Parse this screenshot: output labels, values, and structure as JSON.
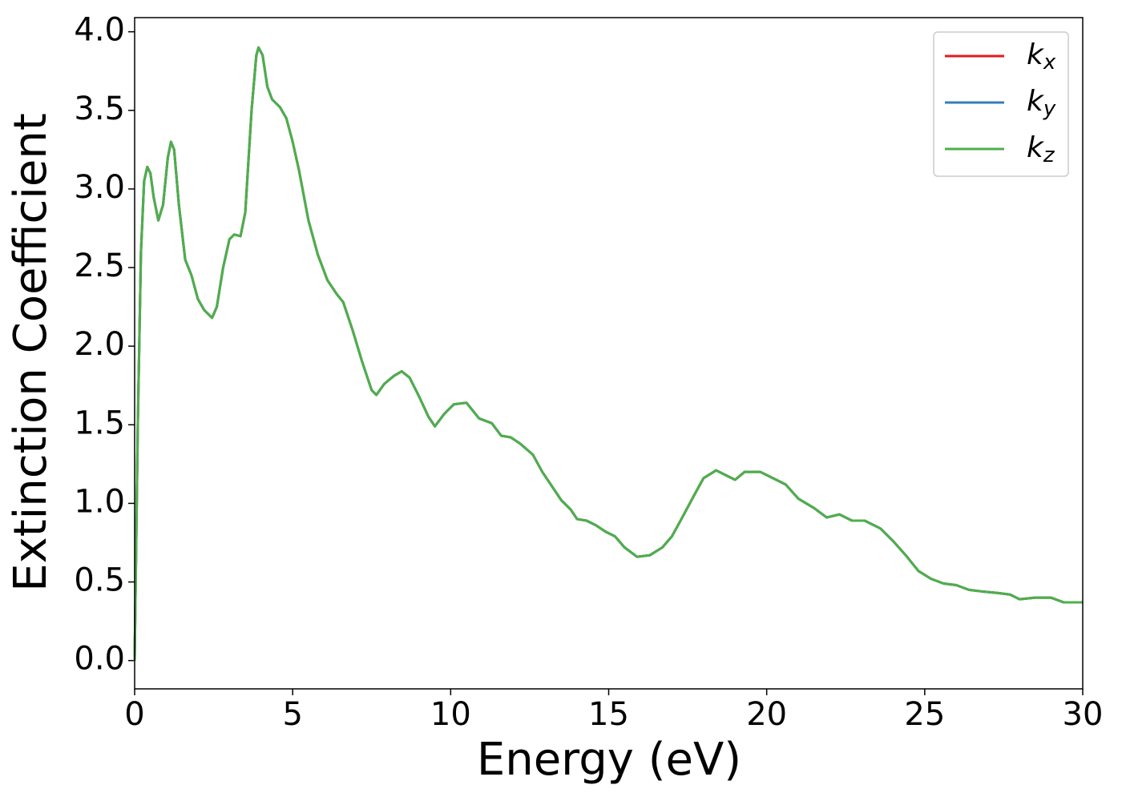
{
  "chart_data": {
    "type": "line",
    "xlabel": "Energy (eV)",
    "ylabel": "Extinction Coefficient",
    "x": [
      0,
      0.1,
      0.2,
      0.3,
      0.4,
      0.5,
      0.6,
      0.75,
      0.9,
      1.05,
      1.15,
      1.25,
      1.4,
      1.6,
      1.8,
      2.0,
      2.2,
      2.45,
      2.6,
      2.8,
      3.0,
      3.15,
      3.35,
      3.5,
      3.7,
      3.85,
      3.92,
      4.05,
      4.2,
      4.35,
      4.6,
      4.8,
      5.0,
      5.2,
      5.5,
      5.8,
      6.1,
      6.4,
      6.6,
      6.9,
      7.2,
      7.5,
      7.65,
      7.9,
      8.2,
      8.45,
      8.7,
      9.0,
      9.3,
      9.5,
      9.8,
      10.1,
      10.5,
      10.9,
      11.3,
      11.6,
      11.9,
      12.2,
      12.6,
      12.9,
      13.2,
      13.5,
      13.8,
      14.0,
      14.3,
      14.6,
      14.9,
      15.2,
      15.5,
      15.9,
      16.3,
      16.7,
      17.0,
      17.3,
      17.7,
      18.0,
      18.4,
      18.7,
      19.0,
      19.3,
      19.8,
      20.2,
      20.6,
      21.0,
      21.5,
      21.9,
      22.3,
      22.7,
      23.1,
      23.6,
      24.0,
      24.4,
      24.8,
      25.2,
      25.6,
      26.0,
      26.4,
      26.8,
      27.3,
      27.7,
      28.0,
      28.5,
      29.0,
      29.4,
      30.0
    ],
    "series": [
      {
        "name": "kx",
        "color": "#e41a1c",
        "values": [
          0,
          1.5,
          2.6,
          3.05,
          3.14,
          3.1,
          2.95,
          2.8,
          2.9,
          3.2,
          3.3,
          3.25,
          2.9,
          2.55,
          2.45,
          2.3,
          2.23,
          2.18,
          2.25,
          2.5,
          2.68,
          2.71,
          2.7,
          2.85,
          3.5,
          3.85,
          3.9,
          3.85,
          3.65,
          3.57,
          3.52,
          3.45,
          3.3,
          3.12,
          2.8,
          2.58,
          2.42,
          2.33,
          2.28,
          2.1,
          1.9,
          1.72,
          1.69,
          1.76,
          1.81,
          1.84,
          1.8,
          1.68,
          1.55,
          1.49,
          1.57,
          1.63,
          1.64,
          1.54,
          1.51,
          1.43,
          1.42,
          1.38,
          1.31,
          1.2,
          1.11,
          1.02,
          0.96,
          0.9,
          0.89,
          0.86,
          0.82,
          0.79,
          0.72,
          0.66,
          0.67,
          0.72,
          0.79,
          0.9,
          1.05,
          1.16,
          1.21,
          1.18,
          1.15,
          1.2,
          1.2,
          1.16,
          1.12,
          1.03,
          0.97,
          0.91,
          0.93,
          0.89,
          0.89,
          0.84,
          0.76,
          0.67,
          0.57,
          0.52,
          0.49,
          0.48,
          0.45,
          0.44,
          0.43,
          0.42,
          0.39,
          0.4,
          0.4,
          0.37,
          0.37
        ]
      },
      {
        "name": "ky",
        "color": "#377eb8",
        "values": [
          0,
          1.5,
          2.6,
          3.05,
          3.14,
          3.1,
          2.95,
          2.8,
          2.9,
          3.2,
          3.3,
          3.25,
          2.9,
          2.55,
          2.45,
          2.3,
          2.23,
          2.18,
          2.25,
          2.5,
          2.68,
          2.71,
          2.7,
          2.85,
          3.5,
          3.85,
          3.9,
          3.85,
          3.65,
          3.57,
          3.52,
          3.45,
          3.3,
          3.12,
          2.8,
          2.58,
          2.42,
          2.33,
          2.28,
          2.1,
          1.9,
          1.72,
          1.69,
          1.76,
          1.81,
          1.84,
          1.8,
          1.68,
          1.55,
          1.49,
          1.57,
          1.63,
          1.64,
          1.54,
          1.51,
          1.43,
          1.42,
          1.38,
          1.31,
          1.2,
          1.11,
          1.02,
          0.96,
          0.9,
          0.89,
          0.86,
          0.82,
          0.79,
          0.72,
          0.66,
          0.67,
          0.72,
          0.79,
          0.9,
          1.05,
          1.16,
          1.21,
          1.18,
          1.15,
          1.2,
          1.2,
          1.16,
          1.12,
          1.03,
          0.97,
          0.91,
          0.93,
          0.89,
          0.89,
          0.84,
          0.76,
          0.67,
          0.57,
          0.52,
          0.49,
          0.48,
          0.45,
          0.44,
          0.43,
          0.42,
          0.39,
          0.4,
          0.4,
          0.37,
          0.37
        ]
      },
      {
        "name": "kz",
        "color": "#4daf4a",
        "values": [
          0,
          1.5,
          2.6,
          3.05,
          3.14,
          3.1,
          2.95,
          2.8,
          2.9,
          3.2,
          3.3,
          3.25,
          2.9,
          2.55,
          2.45,
          2.3,
          2.23,
          2.18,
          2.25,
          2.5,
          2.68,
          2.71,
          2.7,
          2.85,
          3.5,
          3.85,
          3.9,
          3.85,
          3.65,
          3.57,
          3.52,
          3.45,
          3.3,
          3.12,
          2.8,
          2.58,
          2.42,
          2.33,
          2.28,
          2.1,
          1.9,
          1.72,
          1.69,
          1.76,
          1.81,
          1.84,
          1.8,
          1.68,
          1.55,
          1.49,
          1.57,
          1.63,
          1.64,
          1.54,
          1.51,
          1.43,
          1.42,
          1.38,
          1.31,
          1.2,
          1.11,
          1.02,
          0.96,
          0.9,
          0.89,
          0.86,
          0.82,
          0.79,
          0.72,
          0.66,
          0.67,
          0.72,
          0.79,
          0.9,
          1.05,
          1.16,
          1.21,
          1.18,
          1.15,
          1.2,
          1.2,
          1.16,
          1.12,
          1.03,
          0.97,
          0.91,
          0.93,
          0.89,
          0.89,
          0.84,
          0.76,
          0.67,
          0.57,
          0.52,
          0.49,
          0.48,
          0.45,
          0.44,
          0.43,
          0.42,
          0.39,
          0.4,
          0.4,
          0.37,
          0.37
        ]
      }
    ],
    "xlim": [
      0,
      30
    ],
    "xticks": [
      0,
      5,
      10,
      15,
      20,
      25,
      30
    ],
    "ylim": [
      -0.18,
      4.09
    ],
    "yticks": [
      {
        "value": 0,
        "label": "0.0"
      },
      0.5,
      {
        "value": 1,
        "label": "1.0"
      },
      1.5,
      {
        "value": 2,
        "label": "2.0"
      },
      2.5,
      {
        "value": 3,
        "label": "3.0"
      },
      3.5,
      {
        "value": 4,
        "label": "4.0"
      }
    ],
    "grid": false,
    "legend": "upper right"
  }
}
